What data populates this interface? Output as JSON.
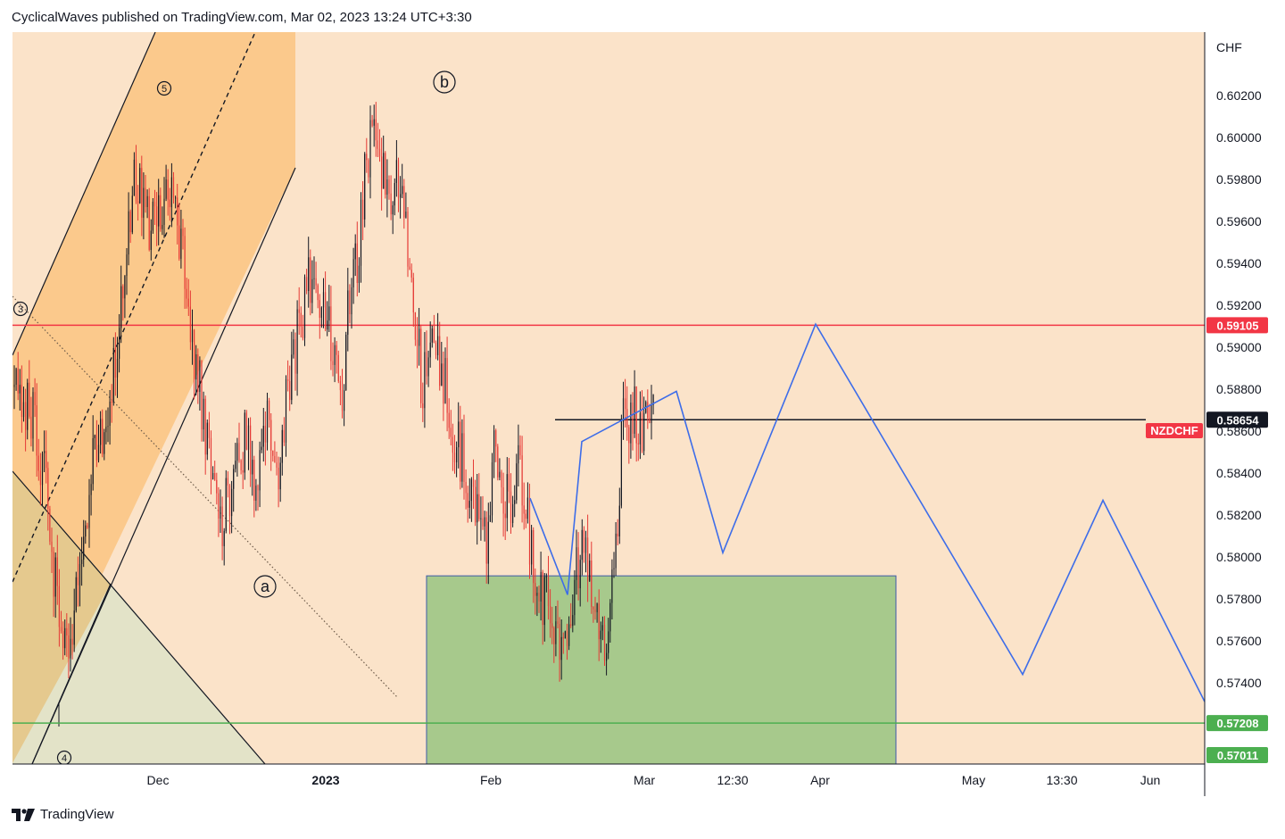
{
  "header": {
    "publisher_line": "CyclicalWaves published on TradingView.com, Mar 02, 2023 13:24 UTC+3:30"
  },
  "footer": {
    "brand": "TradingView",
    "logo_icon": "tradingview-logo-icon"
  },
  "colors": {
    "background": "#fbe3c9",
    "channel_fill": "#fbc98c",
    "triangle_fill": "#e3e3c8",
    "triangle_overlap": "#e5c98e",
    "green_zone": "#a7c98c",
    "green_zone_border": "#3d5aa8",
    "resistance": "#f23645",
    "support": "#4caf50",
    "projection": "#3d6de9",
    "candle_up": "#131722",
    "candle_down": "#e53935"
  },
  "chart_data": {
    "type": "candlestick",
    "symbol": "NZDCHF",
    "currency": "CHF",
    "y_axis": {
      "ticks": [
        "0.60200",
        "0.60000",
        "0.59800",
        "0.59600",
        "0.59400",
        "0.59200",
        "0.59000",
        "0.58800",
        "0.58600",
        "0.58400",
        "0.58200",
        "0.58000",
        "0.57800",
        "0.57600",
        "0.57400"
      ],
      "range": [
        0.57,
        0.6035
      ]
    },
    "x_axis": {
      "ticks": [
        {
          "label": "Dec",
          "bold": false
        },
        {
          "label": "2023",
          "bold": true
        },
        {
          "label": "Feb",
          "bold": false
        },
        {
          "label": "Mar",
          "bold": false
        },
        {
          "label": "12:30",
          "bold": false
        },
        {
          "label": "Apr",
          "bold": false
        },
        {
          "label": "May",
          "bold": false
        },
        {
          "label": "13:30",
          "bold": false
        },
        {
          "label": "Jun",
          "bold": false
        }
      ]
    },
    "price_labels": [
      {
        "value": "0.59105",
        "level": 0.59105,
        "style": "resistance"
      },
      {
        "value": "0.58654",
        "level": 0.58654,
        "style": "last"
      },
      {
        "value": "0.57208",
        "level": 0.57208,
        "style": "support"
      },
      {
        "value": "0.57011",
        "level": 0.57011,
        "style": "support"
      }
    ],
    "symbol_tag": "NZDCHF",
    "horizontal_levels": [
      0.59105,
      0.58654,
      0.57208
    ],
    "wave_labels": [
      {
        "text": "5",
        "circled": true,
        "size": "small"
      },
      {
        "text": "3",
        "circled": true,
        "size": "small"
      },
      {
        "text": "4",
        "circled": true,
        "size": "small"
      },
      {
        "text": "b",
        "circled": true,
        "size": "large"
      },
      {
        "text": "a",
        "circled": true,
        "size": "large"
      }
    ],
    "demand_zone": {
      "top": 0.5791,
      "bottom": 0.5701
    },
    "projection_path": [
      0.5828,
      0.5782,
      0.5855,
      0.5879,
      0.5802,
      0.5911,
      0.5744,
      0.5827,
      0.5731
    ],
    "price_path": [
      0.5885,
      0.5867,
      0.5872,
      0.586,
      0.5835,
      0.58,
      0.5765,
      0.5745,
      0.578,
      0.5815,
      0.5845,
      0.5858,
      0.5877,
      0.5905,
      0.5945,
      0.598,
      0.5975,
      0.5955,
      0.5965,
      0.5972,
      0.5968,
      0.595,
      0.5905,
      0.589,
      0.586,
      0.5832,
      0.5818,
      0.5832,
      0.5855,
      0.5855,
      0.584,
      0.584,
      0.587,
      0.583,
      0.587,
      0.59,
      0.591,
      0.5935,
      0.593,
      0.592,
      0.59,
      0.588,
      0.5925,
      0.5945,
      0.599,
      0.6,
      0.5985,
      0.5962,
      0.5985,
      0.596,
      0.592,
      0.588,
      0.59,
      0.59,
      0.588,
      0.5855,
      0.5845,
      0.5835,
      0.5822,
      0.581,
      0.585,
      0.583,
      0.583,
      0.5842,
      0.582,
      0.5795,
      0.5782,
      0.577,
      0.576,
      0.5765,
      0.579,
      0.581,
      0.579,
      0.5775,
      0.576,
      0.58,
      0.5865,
      0.587,
      0.5863
    ]
  }
}
